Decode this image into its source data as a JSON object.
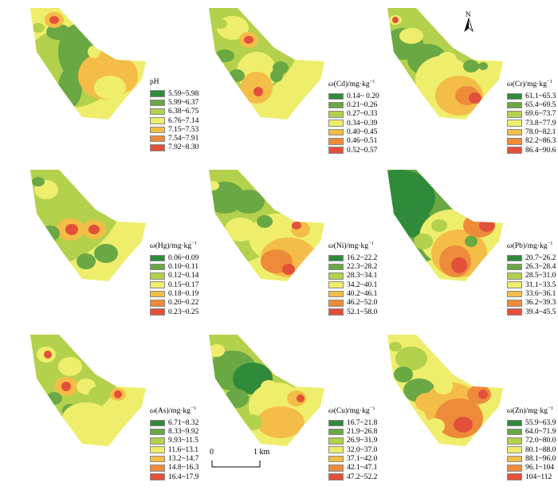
{
  "north_label": "N",
  "scale": {
    "start": "0",
    "end": "1 km"
  },
  "colors": [
    "#2f8b3a",
    "#6aa844",
    "#b3d14c",
    "#eeee6c",
    "#f4bd47",
    "#ee8b3b",
    "#e3503a"
  ],
  "panels": [
    {
      "id": "ph",
      "title_plain": "pH",
      "title_symbol": "",
      "title_element": "",
      "title_unit": "",
      "ranges": [
        "5.59~5.98",
        "5.99~6.37",
        "6.38~6.75",
        "6.76~7.14",
        "7.15~7.53",
        "7.54~7.91",
        "7.92~8.30"
      ]
    },
    {
      "id": "cd",
      "title_plain": "",
      "title_symbol": "ω",
      "title_element": "(Cd)",
      "title_unit": "/mg·kg",
      "ranges": [
        "0.14~ 0.20",
        "0.21~0.26",
        "0.27~0.33",
        "0.34~0.39",
        "0.40~0.45",
        "0.46~0.51",
        "0.52~0.57"
      ]
    },
    {
      "id": "cr",
      "title_plain": "",
      "title_symbol": "ω",
      "title_element": "(Cr)",
      "title_unit": "/mg·kg",
      "ranges": [
        "61.1~65.3",
        "65.4~69.5",
        "69.6~73.7",
        "73.8~77.9",
        "78.0~82.1",
        "82.2~86.3",
        "86.4~90.6"
      ]
    },
    {
      "id": "hg",
      "title_plain": "",
      "title_symbol": "ω",
      "title_element": "(Hg)",
      "title_unit": "/mg·kg",
      "ranges": [
        "0.06~0.09",
        "0.10~0.11",
        "0.12~0.14",
        "0.15~0.17",
        "0.18~0.19",
        "0.20~0.22",
        "0.23~0.25"
      ]
    },
    {
      "id": "ni",
      "title_plain": "",
      "title_symbol": "ω",
      "title_element": "(Ni)",
      "title_unit": "/mg·kg",
      "ranges": [
        "16.2~22.2",
        "22.3~28.2",
        "28.3~34.1",
        "34.2~40.1",
        "40.2~46.1",
        "46.2~52.0",
        "52.1~58.0"
      ]
    },
    {
      "id": "pb",
      "title_plain": "",
      "title_symbol": "ω",
      "title_element": "(Pb)",
      "title_unit": "/mg·kg",
      "ranges": [
        "20.7~26.2",
        "26.3~28.4",
        "28.5~31.0",
        "31.1~33.5",
        "33.6~36.1",
        "36.2~39.3",
        "39.4~45.5"
      ]
    },
    {
      "id": "as",
      "title_plain": "",
      "title_symbol": "ω",
      "title_element": "(As)",
      "title_unit": "/mg·kg",
      "ranges": [
        "6.71~8.32",
        "8.33~9.92",
        "9.93~11.5",
        "11.6~13.1",
        "13.2~14.7",
        "14.8~16.3",
        "16.4~17.9"
      ]
    },
    {
      "id": "cu",
      "title_plain": "",
      "title_symbol": "ω",
      "title_element": "(Cu)",
      "title_unit": "/mg·kg",
      "ranges": [
        "16.7~21.8",
        "21.9~26.8",
        "26.9~31.9",
        "32.0~37.0",
        "37.1~42.0",
        "42.1~47.1",
        "47.2~52.2"
      ]
    },
    {
      "id": "zn",
      "title_plain": "",
      "title_symbol": "ω",
      "title_element": "(Zn)",
      "title_unit": "/mg·kg",
      "ranges": [
        "55.9~63.9",
        "64.0~71.9",
        "72.0~80.0",
        "80.1~88.0",
        "88.1~96.0",
        "96.1~104",
        "104~112"
      ]
    }
  ]
}
